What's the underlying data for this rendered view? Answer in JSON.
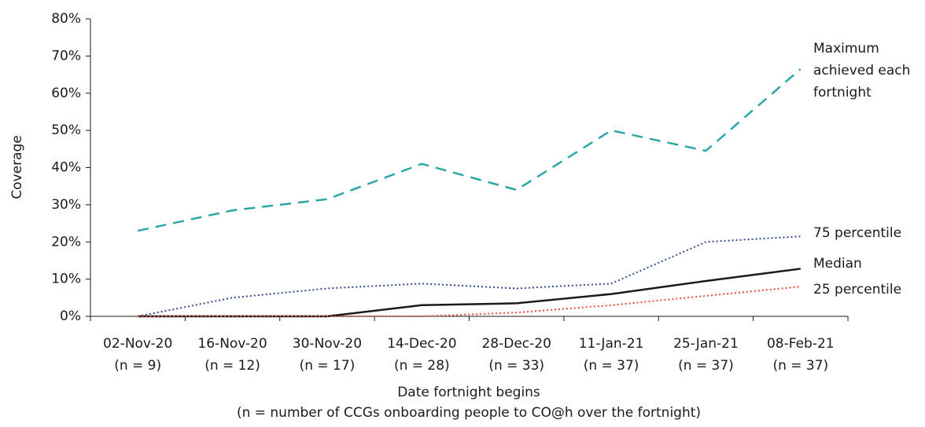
{
  "chart_data": {
    "type": "line",
    "y_label": "Coverage",
    "x_label": "Date fortnight begins",
    "x_label_note": "(n = number of CCGs onboarding people to CO@h over the fortnight)",
    "categories": [
      "02-Nov-20",
      "16-Nov-20",
      "30-Nov-20",
      "14-Dec-20",
      "28-Dec-20",
      "11-Jan-21",
      "25-Jan-21",
      "08-Feb-21"
    ],
    "category_sublabels": [
      "(n = 9)",
      "(n = 12)",
      "(n = 17)",
      "(n = 28)",
      "(n = 33)",
      "(n = 37)",
      "(n = 37)",
      "(n = 37)"
    ],
    "ylim": [
      0,
      80
    ],
    "yticks": [
      {
        "value": 0,
        "label": "0%"
      },
      {
        "value": 10,
        "label": "10%"
      },
      {
        "value": 20,
        "label": "20%"
      },
      {
        "value": 30,
        "label": "30%"
      },
      {
        "value": 40,
        "label": "40%"
      },
      {
        "value": 50,
        "label": "50%"
      },
      {
        "value": 60,
        "label": "60%"
      },
      {
        "value": 70,
        "label": "70%"
      },
      {
        "value": 80,
        "label": "80%"
      }
    ],
    "grid": false,
    "series": [
      {
        "name": "Maximum achieved each fortnight",
        "color": "#2ba6a6",
        "dash": "dashed",
        "values": [
          23,
          28.5,
          31.5,
          41,
          34,
          50,
          44.5,
          66.5
        ]
      },
      {
        "name": "75 percentile",
        "color": "#2f4b8a",
        "dash": "dotted",
        "values": [
          0,
          5,
          7.5,
          8.8,
          7.5,
          8.8,
          20,
          21.5
        ]
      },
      {
        "name": "Median",
        "color": "#1a1a1a",
        "dash": "solid",
        "values": [
          0,
          0,
          0,
          3,
          3.5,
          6,
          9.5,
          12.8
        ]
      },
      {
        "name": "25 percentile",
        "color": "#e8483b",
        "dash": "dotted",
        "values": [
          0,
          0,
          0,
          0,
          1,
          3,
          5.5,
          8
        ]
      }
    ]
  }
}
